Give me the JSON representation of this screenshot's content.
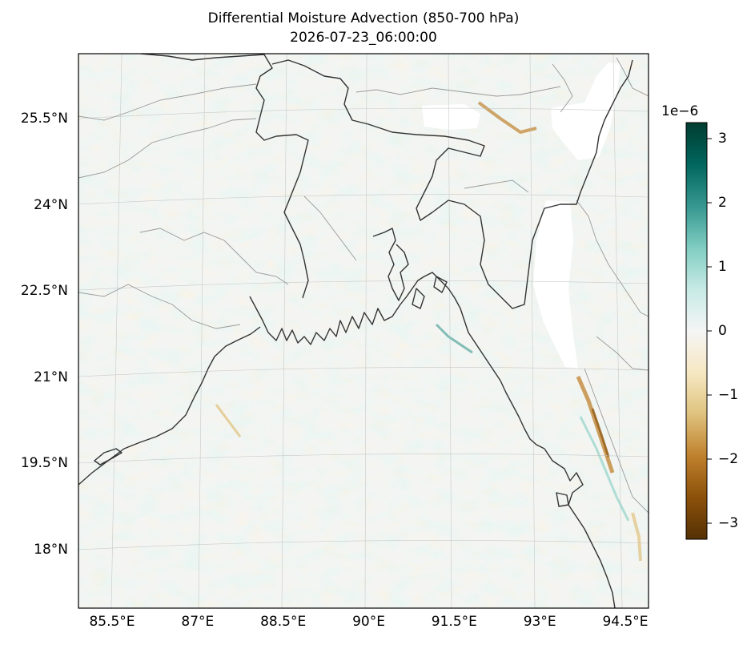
{
  "title": "Differential Moisture Advection (850-700 hPa)",
  "subtitle": "2026-07-23_06:00:00",
  "map": {
    "lon_range": [
      84.5,
      95.0
    ],
    "lat_range": [
      16.8,
      26.7
    ],
    "lat_ticks": [
      {
        "value": 25.5,
        "label": "25.5°N"
      },
      {
        "value": 24.0,
        "label": "24°N"
      },
      {
        "value": 22.5,
        "label": "22.5°N"
      },
      {
        "value": 21.0,
        "label": "21°N"
      },
      {
        "value": 19.5,
        "label": "19.5°N"
      },
      {
        "value": 18.0,
        "label": "18°N"
      }
    ],
    "lon_ticks": [
      {
        "value": 85.5,
        "label": "85.5°E"
      },
      {
        "value": 87.0,
        "label": "87°E"
      },
      {
        "value": 88.5,
        "label": "88.5°E"
      },
      {
        "value": 90.0,
        "label": "90°E"
      },
      {
        "value": 91.5,
        "label": "91.5°E"
      },
      {
        "value": 93.0,
        "label": "93°E"
      },
      {
        "value": 94.5,
        "label": "94.5°E"
      }
    ],
    "gridlines": true
  },
  "colorbar": {
    "colormap": "BrBG",
    "exponent_label": "1e−6",
    "range": [
      -3.25,
      3.25
    ],
    "ticks": [
      {
        "value": 3,
        "label": "3"
      },
      {
        "value": 2,
        "label": "2"
      },
      {
        "value": 1,
        "label": "1"
      },
      {
        "value": 0,
        "label": "0"
      },
      {
        "value": -1,
        "label": "−1"
      },
      {
        "value": -2,
        "label": "−2"
      },
      {
        "value": -3,
        "label": "−3"
      }
    ],
    "stops": [
      "#543005",
      "#8c510a",
      "#bf812d",
      "#dfc27d",
      "#f6e8c3",
      "#f5f5f5",
      "#c7eae5",
      "#80cdc1",
      "#35978f",
      "#01665e",
      "#003c30"
    ]
  },
  "colors": {
    "coastline": "#333333",
    "state_borders": "#999999",
    "missing": "#ffffff",
    "positive_accent": "#35978f",
    "negative_accent": "#bf812d"
  }
}
